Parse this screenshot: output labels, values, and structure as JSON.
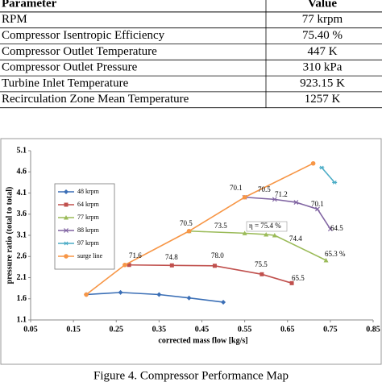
{
  "table": {
    "header": [
      "Parameter",
      "Value"
    ],
    "rows": [
      [
        "RPM",
        "77 krpm"
      ],
      [
        "Compressor Isentropic Efficiency",
        "75.40 %"
      ],
      [
        "Compressor Outlet Temperature",
        "447 K"
      ],
      [
        "Compressor Outlet Pressure",
        "310 kPa"
      ],
      [
        "Turbine Inlet Temperature",
        "923.15 K"
      ],
      [
        "Recirculation Zone Mean Temperature",
        "1257 K"
      ]
    ]
  },
  "chart_data": {
    "type": "line",
    "x_label": "corrected mass flow [kg/s]",
    "y_label": "pressure ratio (total to total)",
    "xlim": [
      0.05,
      0.85
    ],
    "xticks": [
      0.05,
      0.15,
      0.25,
      0.35,
      0.45,
      0.55,
      0.65,
      0.75,
      0.85
    ],
    "ylim": [
      1.1,
      5.1
    ],
    "yticks": [
      1.1,
      1.6,
      2.1,
      2.6,
      3.1,
      3.6,
      4.1,
      4.6,
      5.1
    ],
    "grid": false,
    "series": [
      {
        "name": "48 krpm",
        "color": "#3b6fb6",
        "x": [
          0.18,
          0.26,
          0.35,
          0.42,
          0.5
        ],
        "values": [
          1.7,
          1.75,
          1.7,
          1.62,
          1.52
        ]
      },
      {
        "name": "64 krpm",
        "color": "#c0504d",
        "x": [
          0.28,
          0.38,
          0.48,
          0.59,
          0.66
        ],
        "values": [
          2.4,
          2.39,
          2.38,
          2.18,
          1.97
        ]
      },
      {
        "name": "77 krpm",
        "color": "#9bbb59",
        "x": [
          0.42,
          0.55,
          0.6,
          0.62,
          0.74
        ],
        "values": [
          3.2,
          3.15,
          3.12,
          3.1,
          2.51
        ]
      },
      {
        "name": "88 krpm",
        "color": "#8064a2",
        "x": [
          0.55,
          0.62,
          0.67,
          0.72,
          0.75
        ],
        "values": [
          4.0,
          3.95,
          3.88,
          3.72,
          3.25
        ]
      },
      {
        "name": "97 krpm",
        "color": "#4bacc6",
        "x": [
          0.73,
          0.76
        ],
        "values": [
          4.7,
          4.35
        ]
      },
      {
        "name": "surge line",
        "color": "#f79646",
        "x": [
          0.18,
          0.27,
          0.42,
          0.55,
          0.71
        ],
        "values": [
          1.7,
          2.4,
          3.2,
          4.0,
          4.8
        ]
      }
    ],
    "annotations": [
      "71.6",
      "74.8",
      "78.0",
      "75.5",
      "65.5",
      "70.5",
      "73.5",
      "η = 75.4 %",
      "74.4",
      "65.3 %",
      "70.1",
      "70.5",
      "71.2",
      "70.1",
      "64.5"
    ]
  },
  "caption": "Figure 4. Compressor Performance Map"
}
